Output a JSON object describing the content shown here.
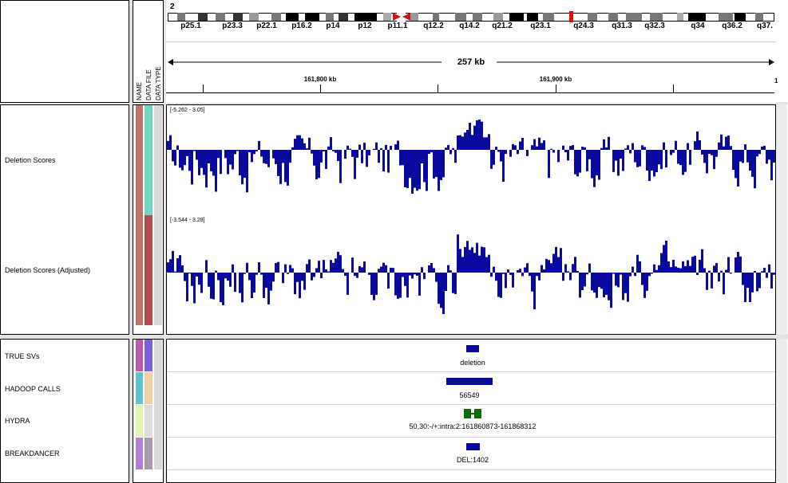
{
  "ideogram": {
    "chromosome": "2",
    "bands": [
      "p25.1",
      "p23.3",
      "p22.1",
      "p16.2",
      "p14",
      "p12",
      "p11.1",
      "q12.2",
      "q14.2",
      "q21.2",
      "q23.1",
      "q24.3",
      "q31.3",
      "q32.3",
      "q34",
      "q36.2",
      "q37."
    ],
    "span_label": "257 kb",
    "positions": [
      "161,800 kb",
      "161,900 kb"
    ]
  },
  "attribute_headers": [
    "NAME",
    "DATA FILE",
    "DATA TYPE"
  ],
  "data_tracks": [
    {
      "name": "Deletion Scores",
      "range": "[-5.262 - 3.05]"
    },
    {
      "name": "Deletion Scores (Adjusted)",
      "range": "[-3.544 - 3.28]"
    }
  ],
  "feature_tracks": [
    {
      "name": "TRUE SVs",
      "feature_label": "deletion"
    },
    {
      "name": "HADOOP CALLS",
      "feature_label": "56549"
    },
    {
      "name": "HYDRA",
      "feature_label": "50,30:-/+:intra:2:161860873-161868312"
    },
    {
      "name": "BREAKDANCER",
      "feature_label": "DEL:1402"
    }
  ],
  "colors": {
    "bar": "#0a0a9e",
    "hydra": "#0b6b0b",
    "centromere": "#cc1111",
    "current_region": "#ff0000",
    "attr_name_top": "#bd7468",
    "attr_file_top1": "#6fd8c1",
    "attr_file_top2": "#b54a4a",
    "attr_type_top": "#d8d8d8",
    "attr_true_1": "#b85ab0",
    "attr_true_2": "#7a62d8",
    "attr_hadoop_1": "#5ec3cf",
    "attr_hadoop_2": "#f4d0a6",
    "attr_hydra_1": "#dff5b0",
    "attr_hydra_2": "#dcdcdc",
    "attr_bd_1": "#b37ed3",
    "attr_bd_2": "#aa9ba9"
  }
}
